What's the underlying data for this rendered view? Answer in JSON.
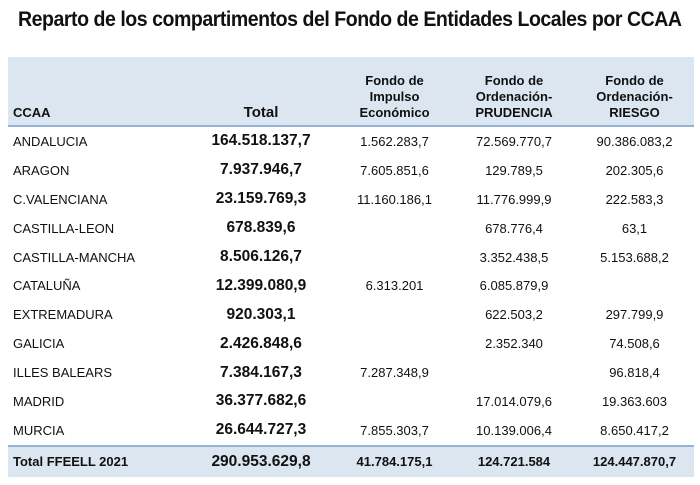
{
  "title": "Reparto de los compartimentos  del Fondo de Entidades Locales por CCAA",
  "header": {
    "ccaa": "CCAA",
    "total": "Total",
    "impulso": [
      "Fondo de",
      "Impulso",
      "Económico"
    ],
    "prudencia": [
      "Fondo de",
      "Ordenación-",
      "PRUDENCIA"
    ],
    "riesgo": [
      "Fondo de",
      "Ordenación-",
      "RIESGO"
    ]
  },
  "rows": [
    {
      "ccaa": "ANDALUCIA",
      "total": "164.518.137,7",
      "impulso": "1.562.283,7",
      "prudencia": "72.569.770,7",
      "riesgo": "90.386.083,2"
    },
    {
      "ccaa": "ARAGON",
      "total": "7.937.946,7",
      "impulso": "7.605.851,6",
      "prudencia": "129.789,5",
      "riesgo": "202.305,6"
    },
    {
      "ccaa": "C.VALENCIANA",
      "total": "23.159.769,3",
      "impulso": "11.160.186,1",
      "prudencia": "11.776.999,9",
      "riesgo": "222.583,3"
    },
    {
      "ccaa": "CASTILLA-LEON",
      "total": "678.839,6",
      "impulso": "",
      "prudencia": "678.776,4",
      "riesgo": "63,1"
    },
    {
      "ccaa": "CASTILLA-MANCHA",
      "total": "8.506.126,7",
      "impulso": "",
      "prudencia": "3.352.438,5",
      "riesgo": "5.153.688,2"
    },
    {
      "ccaa": "CATALUÑA",
      "total": "12.399.080,9",
      "impulso": "6.313.201",
      "prudencia": "6.085.879,9",
      "riesgo": ""
    },
    {
      "ccaa": "EXTREMADURA",
      "total": "920.303,1",
      "impulso": "",
      "prudencia": "622.503,2",
      "riesgo": "297.799,9"
    },
    {
      "ccaa": "GALICIA",
      "total": "2.426.848,6",
      "impulso": "",
      "prudencia": "2.352.340",
      "riesgo": "74.508,6"
    },
    {
      "ccaa": "ILLES BALEARS",
      "total": "7.384.167,3",
      "impulso": "7.287.348,9",
      "prudencia": "",
      "riesgo": "96.818,4"
    },
    {
      "ccaa": "MADRID",
      "total": "36.377.682,6",
      "impulso": "",
      "prudencia": "17.014.079,6",
      "riesgo": "19.363.603"
    },
    {
      "ccaa": "MURCIA",
      "total": "26.644.727,3",
      "impulso": "7.855.303,7",
      "prudencia": "10.139.006,4",
      "riesgo": "8.650.417,2"
    }
  ],
  "footer": {
    "ccaa": "Total FFEELL 2021",
    "total": "290.953.629,8",
    "impulso": "41.784.175,1",
    "prudencia": "124.721.584",
    "riesgo": "124.447.870,7"
  }
}
